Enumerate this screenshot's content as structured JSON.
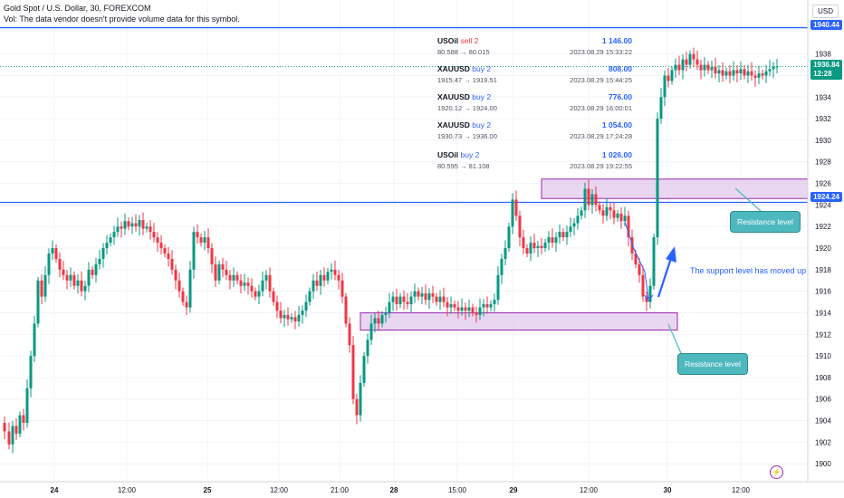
{
  "header": {
    "title": "Gold Spot / U.S. Dollar, 30, FOREXCOM",
    "volume_note": "Vol: The data vendor doesn't provide volume data for this symbol."
  },
  "currency_button": "USD",
  "trades": [
    {
      "symbol": "USOil",
      "side": "sell 2",
      "amount": "1 146.00",
      "range": "80.588 → 80.015",
      "date": "2023.08.29 15:33:22"
    },
    {
      "symbol": "XAUUSD",
      "side": "buy 2",
      "amount": "808.00",
      "range": "1915.47 → 1919.51",
      "date": "2023.08.29 15:44:25"
    },
    {
      "symbol": "XAUUSD",
      "side": "buy 2",
      "amount": "776.00",
      "range": "1920.12 → 1924.00",
      "date": "2023.08.29 16:00:01"
    },
    {
      "symbol": "XAUUSD",
      "side": "buy 2",
      "amount": "1 054.00",
      "range": "1930.73 → 1936.00",
      "date": "2023.08.29 17:24:28"
    },
    {
      "symbol": "USOil",
      "side": "buy 2",
      "amount": "1 026.00",
      "range": "80.595 → 81.108",
      "date": "2023.08.29 19:22:55"
    }
  ],
  "annotations": {
    "resistance_upper": "Resistance level",
    "resistance_lower": "Resistance level",
    "support_note": "The support level has moved up"
  },
  "price_tags": {
    "top_line": "1940.44",
    "current_price": "1936.84",
    "countdown": "12:28",
    "mid_line": "1924.24"
  },
  "colors": {
    "up": "#089981",
    "down": "#f23645",
    "line": "#2962ff",
    "zone_fill": "#e1c8ec",
    "zone_border": "#9c27b0",
    "callout": "#4eb8bf"
  },
  "chart_data": {
    "type": "candlestick",
    "y_axis": {
      "min": 1898,
      "max": 1942,
      "ticks": [
        1900,
        1902,
        1904,
        1906,
        1908,
        1910,
        1912,
        1914,
        1916,
        1918,
        1920,
        1922,
        1924,
        1926,
        1928,
        1930,
        1932,
        1934,
        1936,
        1938
      ]
    },
    "x_axis": {
      "tick_labels": [
        "24",
        "12:00",
        "25",
        "12:00",
        "21:00",
        "28",
        "15:00",
        "29",
        "12:00",
        "30",
        "12:00"
      ]
    },
    "horizontal_lines": [
      1940.44,
      1924.24
    ],
    "current_price": 1936.84,
    "zones": [
      {
        "name": "upper",
        "low": 1924.6,
        "high": 1926.4
      },
      {
        "name": "lower",
        "low": 1912.4,
        "high": 1914.0
      }
    ],
    "path_points": [
      [
        0,
        1903.8
      ],
      [
        5,
        1903.0
      ],
      [
        10,
        1901.8
      ],
      [
        14,
        1903.5
      ],
      [
        18,
        1902.8
      ],
      [
        22,
        1904.5
      ],
      [
        26,
        1903.8
      ],
      [
        30,
        1907.0
      ],
      [
        34,
        1910.0
      ],
      [
        38,
        1913.0
      ],
      [
        42,
        1917.0
      ],
      [
        46,
        1915.5
      ],
      [
        50,
        1917.5
      ],
      [
        54,
        1919.5
      ],
      [
        58,
        1920.0
      ],
      [
        62,
        1919.0
      ],
      [
        66,
        1918.0
      ],
      [
        70,
        1917.5
      ],
      [
        74,
        1917.0
      ],
      [
        78,
        1917.5
      ],
      [
        82,
        1916.5
      ],
      [
        86,
        1917.0
      ],
      [
        90,
        1916.0
      ],
      [
        94,
        1916.5
      ],
      [
        98,
        1918.0
      ],
      [
        102,
        1917.5
      ],
      [
        106,
        1918.5
      ],
      [
        110,
        1919.0
      ],
      [
        114,
        1920.0
      ],
      [
        118,
        1920.5
      ],
      [
        122,
        1921.0
      ],
      [
        126,
        1921.5
      ],
      [
        130,
        1922.0
      ],
      [
        134,
        1921.8
      ],
      [
        138,
        1922.5
      ],
      [
        142,
        1922.0
      ],
      [
        146,
        1922.3
      ],
      [
        150,
        1922.0
      ],
      [
        154,
        1922.6
      ],
      [
        158,
        1921.8
      ],
      [
        162,
        1922.0
      ],
      [
        166,
        1921.5
      ],
      [
        170,
        1921.0
      ],
      [
        174,
        1920.5
      ],
      [
        178,
        1920.0
      ],
      [
        182,
        1919.5
      ],
      [
        186,
        1919.0
      ],
      [
        190,
        1918.0
      ],
      [
        194,
        1917.0
      ],
      [
        198,
        1916.0
      ],
      [
        202,
        1915.0
      ],
      [
        206,
        1914.5
      ],
      [
        210,
        1918.0
      ],
      [
        214,
        1921.5
      ],
      [
        218,
        1921.0
      ],
      [
        222,
        1920.5
      ],
      [
        226,
        1921.0
      ],
      [
        230,
        1920.0
      ],
      [
        234,
        1918.5
      ],
      [
        238,
        1917.0
      ],
      [
        242,
        1918.5
      ],
      [
        246,
        1918.0
      ],
      [
        250,
        1917.5
      ],
      [
        254,
        1917.0
      ],
      [
        258,
        1917.5
      ],
      [
        262,
        1917.0
      ],
      [
        266,
        1916.5
      ],
      [
        270,
        1916.8
      ],
      [
        274,
        1916.5
      ],
      [
        278,
        1916.0
      ],
      [
        282,
        1915.5
      ],
      [
        286,
        1916.0
      ],
      [
        290,
        1917.0
      ],
      [
        294,
        1917.5
      ],
      [
        298,
        1916.0
      ],
      [
        302,
        1915.0
      ],
      [
        306,
        1914.2
      ],
      [
        310,
        1913.5
      ],
      [
        314,
        1913.8
      ],
      [
        318,
        1913.4
      ],
      [
        322,
        1913.6
      ],
      [
        326,
        1913.2
      ],
      [
        330,
        1913.8
      ],
      [
        334,
        1914.2
      ],
      [
        338,
        1915.0
      ],
      [
        342,
        1916.0
      ],
      [
        346,
        1917.0
      ],
      [
        350,
        1916.5
      ],
      [
        354,
        1917.5
      ],
      [
        358,
        1917.0
      ],
      [
        362,
        1917.8
      ],
      [
        366,
        1918.0
      ],
      [
        370,
        1917.5
      ],
      [
        374,
        1917.0
      ],
      [
        378,
        1915.5
      ],
      [
        382,
        1913.0
      ],
      [
        386,
        1911.0
      ],
      [
        390,
        1906.0
      ],
      [
        394,
        1904.5
      ],
      [
        398,
        1907.5
      ],
      [
        402,
        1910.0
      ],
      [
        406,
        1911.5
      ],
      [
        410,
        1913.0
      ],
      [
        414,
        1913.5
      ],
      [
        418,
        1913.0
      ],
      [
        422,
        1913.8
      ],
      [
        426,
        1914.0
      ],
      [
        430,
        1915.0
      ],
      [
        434,
        1915.5
      ],
      [
        438,
        1914.8
      ],
      [
        442,
        1915.5
      ],
      [
        446,
        1915.0
      ],
      [
        450,
        1914.8
      ],
      [
        454,
        1915.5
      ],
      [
        458,
        1916.0
      ],
      [
        462,
        1915.5
      ],
      [
        466,
        1915.8
      ],
      [
        470,
        1915.2
      ],
      [
        474,
        1915.8
      ],
      [
        478,
        1915.5
      ],
      [
        482,
        1915.0
      ],
      [
        486,
        1915.5
      ],
      [
        490,
        1915.0
      ],
      [
        494,
        1914.5
      ],
      [
        498,
        1914.8
      ],
      [
        502,
        1914.5
      ],
      [
        506,
        1914.2
      ],
      [
        510,
        1914.5
      ],
      [
        514,
        1914.2
      ],
      [
        518,
        1914.5
      ],
      [
        522,
        1914.0
      ],
      [
        526,
        1913.8
      ],
      [
        530,
        1914.5
      ],
      [
        534,
        1914.8
      ],
      [
        538,
        1914.5
      ],
      [
        542,
        1914.8
      ],
      [
        546,
        1915.2
      ],
      [
        550,
        1917.5
      ],
      [
        554,
        1919.0
      ],
      [
        558,
        1920.0
      ],
      [
        562,
        1922.0
      ],
      [
        566,
        1924.5
      ],
      [
        570,
        1923.0
      ],
      [
        574,
        1921.0
      ],
      [
        578,
        1920.0
      ],
      [
        582,
        1919.5
      ],
      [
        586,
        1920.5
      ],
      [
        590,
        1920.0
      ],
      [
        594,
        1920.2
      ],
      [
        598,
        1920.0
      ],
      [
        602,
        1920.5
      ],
      [
        606,
        1921.0
      ],
      [
        610,
        1920.5
      ],
      [
        614,
        1921.0
      ],
      [
        618,
        1921.5
      ],
      [
        622,
        1921.0
      ],
      [
        626,
        1921.5
      ],
      [
        630,
        1922.0
      ],
      [
        634,
        1922.3
      ],
      [
        638,
        1923.0
      ],
      [
        642,
        1923.5
      ],
      [
        646,
        1925.5
      ],
      [
        650,
        1924.0
      ],
      [
        654,
        1925.0
      ],
      [
        658,
        1924.0
      ],
      [
        662,
        1923.5
      ],
      [
        666,
        1923.0
      ],
      [
        670,
        1923.8
      ],
      [
        674,
        1923.5
      ],
      [
        678,
        1922.8
      ],
      [
        682,
        1923.2
      ],
      [
        686,
        1922.5
      ],
      [
        690,
        1923.0
      ],
      [
        694,
        1921.0
      ],
      [
        698,
        1919.5
      ],
      [
        702,
        1918.5
      ],
      [
        706,
        1917.5
      ],
      [
        710,
        1915.5
      ],
      [
        714,
        1915.0
      ],
      [
        718,
        1916.5
      ],
      [
        722,
        1921.0
      ],
      [
        726,
        1932.0
      ],
      [
        730,
        1934.0
      ],
      [
        734,
        1936.0
      ],
      [
        738,
        1935.5
      ],
      [
        742,
        1936.5
      ],
      [
        746,
        1937.0
      ],
      [
        750,
        1936.5
      ],
      [
        754,
        1937.5
      ],
      [
        758,
        1937.0
      ],
      [
        762,
        1938.0
      ],
      [
        766,
        1937.5
      ],
      [
        770,
        1937.0
      ],
      [
        774,
        1936.5
      ],
      [
        778,
        1937.0
      ],
      [
        782,
        1936.5
      ],
      [
        786,
        1936.8
      ],
      [
        790,
        1936.2
      ],
      [
        794,
        1936.5
      ],
      [
        798,
        1936.0
      ],
      [
        802,
        1936.4
      ],
      [
        806,
        1936.0
      ],
      [
        810,
        1936.5
      ],
      [
        814,
        1936.2
      ],
      [
        818,
        1936.6
      ],
      [
        822,
        1936.0
      ],
      [
        826,
        1936.4
      ],
      [
        830,
        1936.0
      ],
      [
        834,
        1935.8
      ],
      [
        838,
        1936.2
      ],
      [
        842,
        1936.0
      ],
      [
        846,
        1936.4
      ],
      [
        850,
        1936.6
      ],
      [
        854,
        1936.8
      ],
      [
        858,
        1936.84
      ]
    ]
  }
}
